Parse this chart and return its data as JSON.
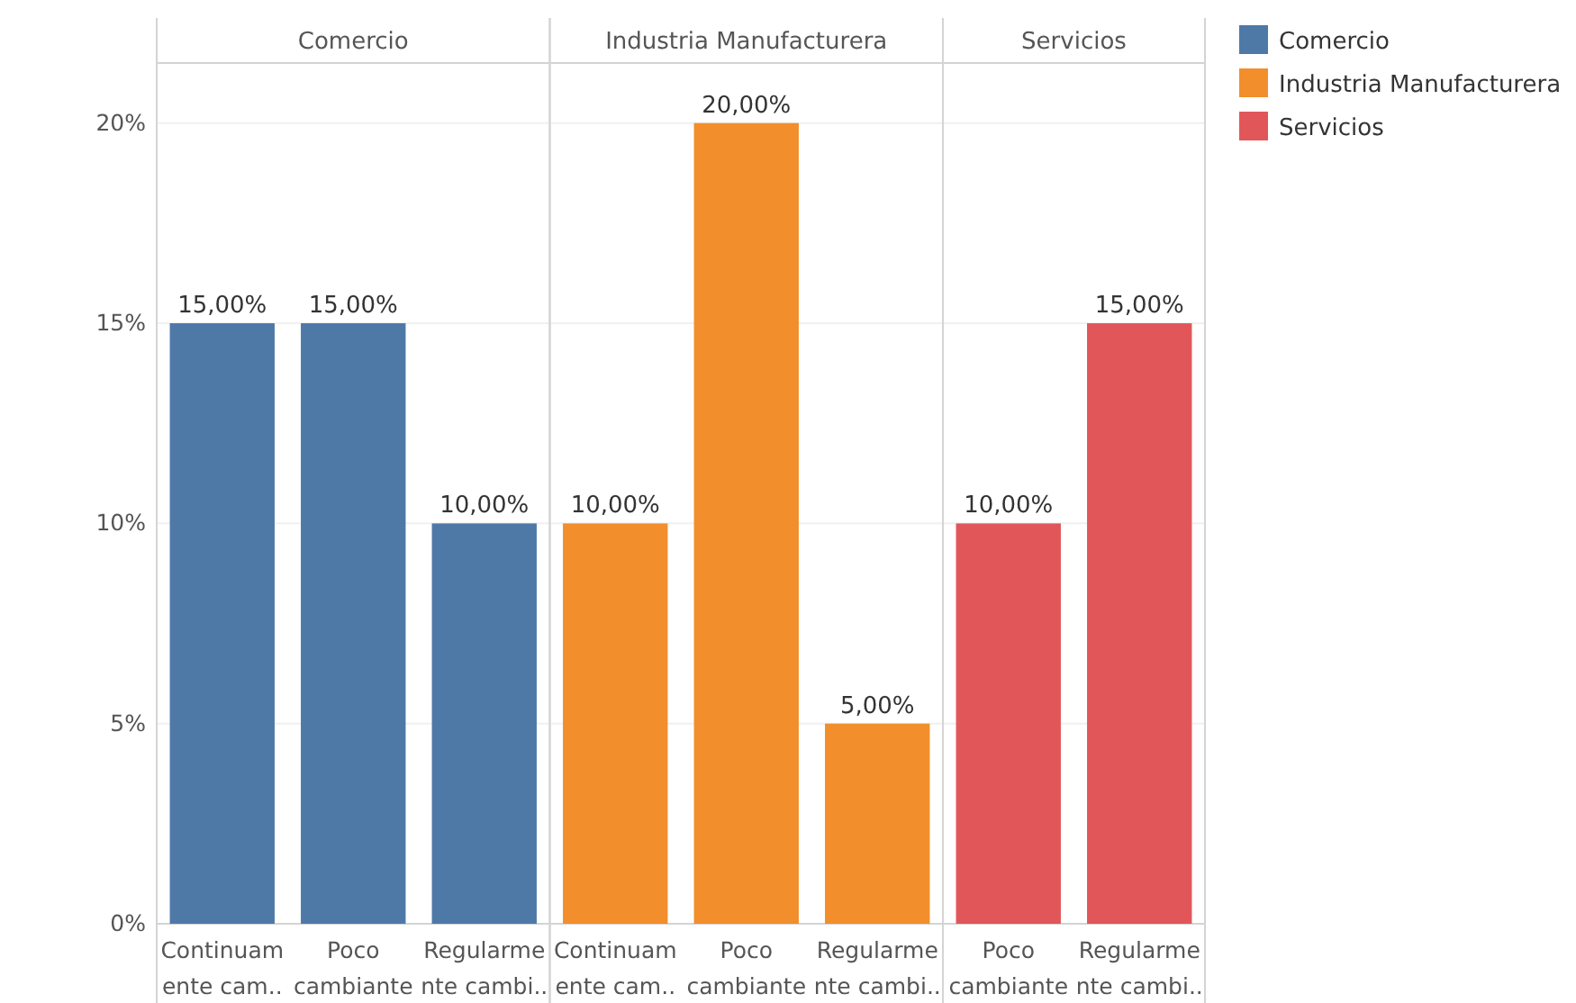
{
  "chart_data": [
    {
      "type": "bar",
      "title": "Comercio",
      "categories": [
        "Continuamente cam..",
        "Poco cambiante",
        "Regularmente cambi.."
      ],
      "series": [
        {
          "name": "Comercio",
          "color": "#4e79a7",
          "values": [
            15,
            15,
            10
          ],
          "value_labels": [
            "15,00%",
            "15,00%",
            "10,00%"
          ]
        }
      ],
      "ylim": [
        0,
        21.5
      ],
      "yticks": [
        {
          "value": 0,
          "label": "0%"
        },
        {
          "value": 5,
          "label": "5%"
        },
        {
          "value": 10,
          "label": "10%"
        },
        {
          "value": 15,
          "label": "15%"
        },
        {
          "value": 20,
          "label": "20%"
        }
      ],
      "grid": "y",
      "legend": "right"
    },
    {
      "type": "bar",
      "title": "Industria Manufacturera",
      "categories": [
        "Continuamente cam..",
        "Poco cambiante",
        "Regularmente cambi.."
      ],
      "series": [
        {
          "name": "Industria Manufacturera",
          "color": "#f28e2b",
          "values": [
            10,
            20,
            5
          ],
          "value_labels": [
            "10,00%",
            "20,00%",
            "5,00%"
          ]
        }
      ],
      "ylim": [
        0,
        21.5
      ],
      "yticks": [
        {
          "value": 0,
          "label": null
        },
        {
          "value": 5,
          "label": null
        },
        {
          "value": 10,
          "label": null
        },
        {
          "value": 15,
          "label": null
        },
        {
          "value": 20,
          "label": null
        }
      ],
      "grid": "y",
      "tick_labels": "x",
      "legend": "right"
    },
    {
      "type": "bar",
      "title": "Servicios",
      "categories": [
        "Poco cambiante",
        "Regularmente cambi.."
      ],
      "series": [
        {
          "name": "Servicios",
          "color": "#e15759",
          "values": [
            10,
            15
          ],
          "value_labels": [
            "10,00%",
            "15,00%"
          ]
        }
      ],
      "ylim": [
        0,
        21.5
      ],
      "yticks": [
        {
          "value": 0,
          "label": null
        },
        {
          "value": 5,
          "label": null
        },
        {
          "value": 10,
          "label": null
        },
        {
          "value": 15,
          "label": null
        },
        {
          "value": 20,
          "label": null
        }
      ],
      "grid": "y",
      "tick_labels": "x",
      "legend": "right"
    }
  ]
}
